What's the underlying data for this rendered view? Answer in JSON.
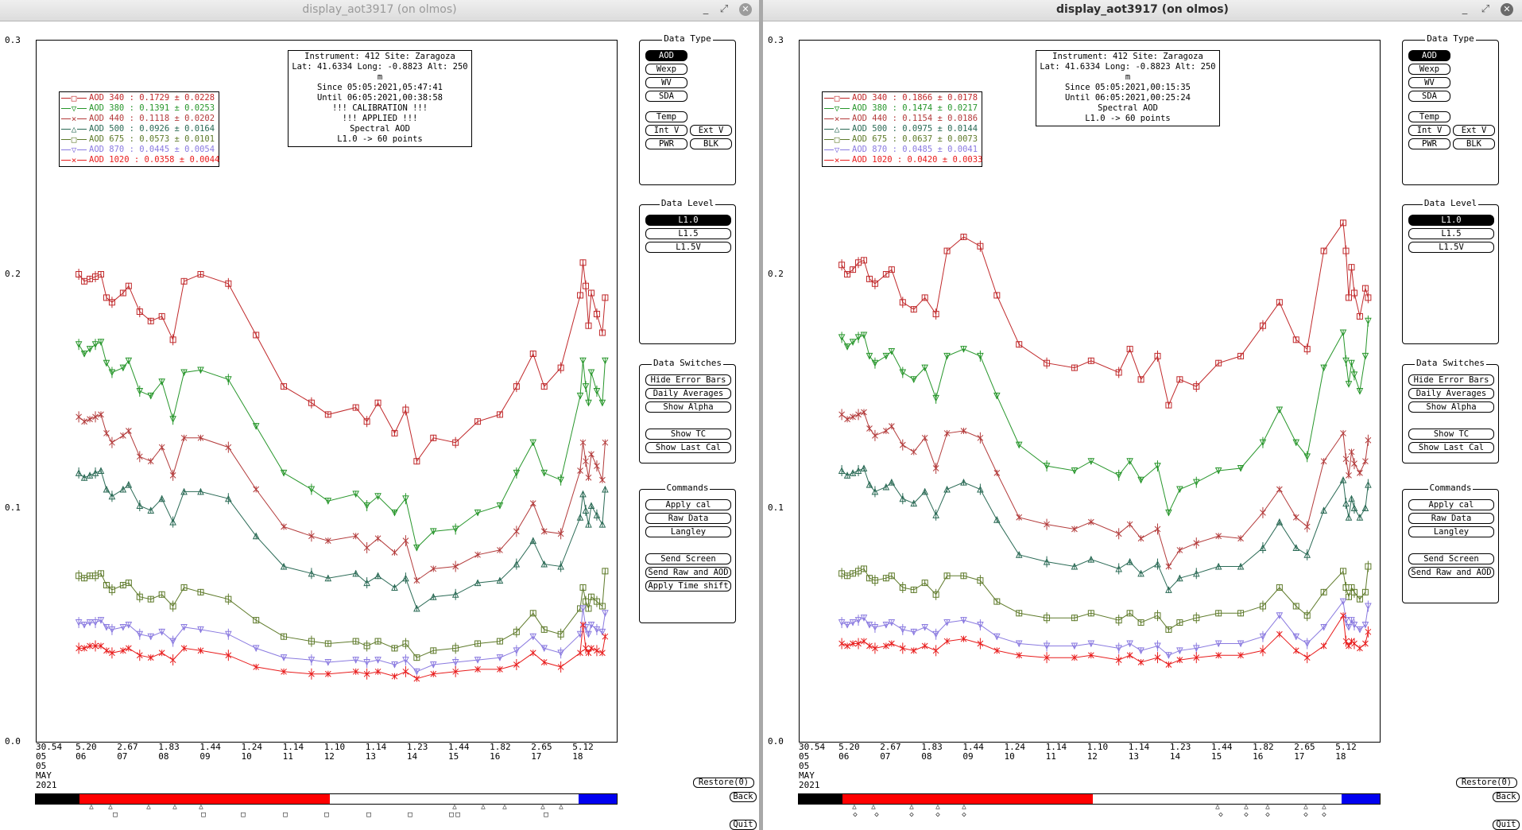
{
  "windows": [
    {
      "title": "display_aot3917 (on olmos)",
      "info": [
        "Instrument: 412 Site: Zaragoza",
        "Lat: 41.6334 Long: -0.8823 Alt: 250 m",
        "Since 05:05:2021,05:47:41",
        "Until 06:05:2021,00:38:58",
        "!!! CALIBRATION !!!",
        "!!!   APPLIED   !!!",
        "Spectral AOD",
        "L1.0 -> 60 points"
      ],
      "legend": [
        {
          "sym": "□",
          "label": "AOD 340",
          "value": ": 0.1729 ± 0.0228",
          "color": "#c0282a"
        },
        {
          "sym": "▽",
          "label": "AOD 380",
          "value": ": 0.1391 ± 0.0253",
          "color": "#27962b"
        },
        {
          "sym": "×",
          "label": "AOD 440",
          "value": ": 0.1118 ± 0.0202",
          "color": "#b33b3b"
        },
        {
          "sym": "△",
          "label": "AOD 500",
          "value": ": 0.0926 ± 0.0164",
          "color": "#2a6a55"
        },
        {
          "sym": "□",
          "label": "AOD 675",
          "value": ": 0.0573 ± 0.0101",
          "color": "#5e7a2a"
        },
        {
          "sym": "▽",
          "label": "AOD 870",
          "value": ": 0.0445 ± 0.0054",
          "color": "#8a7ae0"
        },
        {
          "sym": "×",
          "label": "AOD 1020",
          "value": ": 0.0358 ± 0.0044",
          "color": "#e81c1c"
        }
      ],
      "xticks": [
        "30.54\n05",
        "5.20\n06",
        "2.67\n07",
        "1.83\n08",
        "1.44\n09",
        "1.24\n10",
        "1.14\n11",
        "1.10\n12",
        "1.14\n13",
        "1.23\n14",
        "1.44\n15",
        "1.82\n16",
        "2.65\n17",
        "5.12\n18"
      ]
    },
    {
      "title": "display_aot3917 (on olmos)",
      "info": [
        "Instrument: 412 Site: Zaragoza",
        "Lat: 41.6334 Long: -0.8823 Alt: 250 m",
        "Since 05:05:2021,00:15:35",
        "Until 06:05:2021,00:25:24",
        "Spectral AOD",
        "L1.0 -> 60 points"
      ],
      "legend": [
        {
          "sym": "□",
          "label": "AOD 340",
          "value": ": 0.1866 ± 0.0178",
          "color": "#c0282a"
        },
        {
          "sym": "▽",
          "label": "AOD 380",
          "value": ": 0.1474 ± 0.0217",
          "color": "#27962b"
        },
        {
          "sym": "×",
          "label": "AOD 440",
          "value": ": 0.1154 ± 0.0186",
          "color": "#b33b3b"
        },
        {
          "sym": "△",
          "label": "AOD 500",
          "value": ": 0.0975 ± 0.0144",
          "color": "#2a6a55"
        },
        {
          "sym": "□",
          "label": "AOD 675",
          "value": ": 0.0637 ± 0.0073",
          "color": "#5e7a2a"
        },
        {
          "sym": "▽",
          "label": "AOD 870",
          "value": ": 0.0485 ± 0.0041",
          "color": "#8a7ae0"
        },
        {
          "sym": "×",
          "label": "AOD 1020",
          "value": ": 0.0420 ± 0.0033",
          "color": "#e81c1c"
        }
      ],
      "xticks": [
        "30.54\n05",
        "5.20\n06",
        "2.67\n07",
        "1.83\n08",
        "1.44\n09",
        "1.24\n10",
        "1.14\n11",
        "1.10\n12",
        "1.14\n13",
        "1.23\n14",
        "1.44\n15",
        "1.82\n16",
        "2.65\n17",
        "5.12\n18"
      ]
    }
  ],
  "yticks": [
    "0.3",
    "0.2",
    "0.1",
    "0.0"
  ],
  "xmonth": [
    "05",
    "MAY",
    "2021"
  ],
  "panels": {
    "data_type": {
      "title": "Data Type",
      "aod": "AOD",
      "wexp": "Wexp",
      "wv": "WV",
      "sda": "SDA",
      "temp": "Temp",
      "intv": "Int V",
      "extv": "Ext V",
      "pwr": "PWR",
      "blk": "BLK"
    },
    "data_level": {
      "title": "Data Level",
      "l10": "L1.0",
      "l15": "L1.5",
      "l15v": "L1.5V"
    },
    "data_switches": {
      "title": "Data Switches",
      "hide": "Hide Error Bars",
      "daily": "Daily Averages",
      "alpha": "Show Alpha",
      "tc": "Show TC",
      "lastcal": "Show Last Cal"
    },
    "commands": {
      "title": "Commands",
      "applycal": "Apply cal",
      "raw": "Raw Data",
      "langley": "Langley",
      "send": "Send Screen",
      "sendraw": "Send Raw and AOD",
      "timeshift": "Apply Time shift"
    }
  },
  "side_buttons": {
    "restore": "Restore(0)",
    "back": "Back",
    "quit": "Quit"
  },
  "window_buttons": {
    "minimize": "_",
    "maximize": "⤢",
    "close": "✕"
  },
  "chart_data": [
    {
      "type": "line",
      "ylim": [
        0,
        0.3
      ],
      "x_tick_labels": [
        "30.54\n05",
        "5.20\n06",
        "2.67\n07",
        "1.83\n08",
        "1.44\n09",
        "1.24\n10",
        "1.14\n11",
        "1.10\n12",
        "1.14\n13",
        "1.23\n14",
        "1.44\n15",
        "1.82\n16",
        "2.65\n17",
        "5.12\n18"
      ],
      "x": [
        0.05,
        0.06,
        0.07,
        0.08,
        0.09,
        0.1,
        0.11,
        0.13,
        0.14,
        0.16,
        0.18,
        0.2,
        0.22,
        0.24,
        0.27,
        0.32,
        0.37,
        0.42,
        0.47,
        0.5,
        0.55,
        0.57,
        0.59,
        0.62,
        0.64,
        0.66,
        0.69,
        0.73,
        0.77,
        0.81,
        0.84,
        0.87,
        0.89,
        0.92,
        0.955,
        0.96,
        0.965,
        0.97,
        0.975,
        0.985,
        0.995,
        1.0
      ],
      "series": [
        {
          "name": "AOD 340",
          "color": "#c0282a",
          "values": [
            0.2,
            0.197,
            0.198,
            0.199,
            0.2,
            0.19,
            0.188,
            0.192,
            0.195,
            0.184,
            0.18,
            0.182,
            0.172,
            0.197,
            0.2,
            0.196,
            0.174,
            0.152,
            0.145,
            0.14,
            0.143,
            0.137,
            0.145,
            0.132,
            0.142,
            0.12,
            0.13,
            0.128,
            0.137,
            0.14,
            0.152,
            0.166,
            0.152,
            0.16,
            0.191,
            0.205,
            0.195,
            0.178,
            0.192,
            0.183,
            0.175,
            0.19
          ]
        },
        {
          "name": "AOD 380",
          "color": "#27962b",
          "values": [
            0.17,
            0.166,
            0.168,
            0.17,
            0.171,
            0.162,
            0.158,
            0.16,
            0.163,
            0.15,
            0.148,
            0.154,
            0.138,
            0.158,
            0.159,
            0.155,
            0.135,
            0.115,
            0.108,
            0.103,
            0.106,
            0.101,
            0.105,
            0.098,
            0.104,
            0.083,
            0.09,
            0.091,
            0.098,
            0.101,
            0.115,
            0.128,
            0.115,
            0.112,
            0.148,
            0.163,
            0.152,
            0.145,
            0.158,
            0.15,
            0.145,
            0.163
          ]
        },
        {
          "name": "AOD 440",
          "color": "#b33b3b",
          "values": [
            0.139,
            0.137,
            0.138,
            0.139,
            0.14,
            0.132,
            0.128,
            0.131,
            0.133,
            0.122,
            0.12,
            0.126,
            0.114,
            0.13,
            0.13,
            0.126,
            0.108,
            0.092,
            0.088,
            0.086,
            0.088,
            0.083,
            0.087,
            0.081,
            0.086,
            0.069,
            0.074,
            0.075,
            0.08,
            0.082,
            0.09,
            0.102,
            0.09,
            0.089,
            0.116,
            0.128,
            0.12,
            0.113,
            0.123,
            0.118,
            0.112,
            0.128
          ]
        },
        {
          "name": "AOD 500",
          "color": "#2a6a55",
          "values": [
            0.115,
            0.113,
            0.114,
            0.115,
            0.116,
            0.108,
            0.105,
            0.108,
            0.11,
            0.101,
            0.099,
            0.104,
            0.094,
            0.107,
            0.107,
            0.104,
            0.088,
            0.075,
            0.072,
            0.07,
            0.072,
            0.068,
            0.071,
            0.066,
            0.07,
            0.057,
            0.062,
            0.063,
            0.068,
            0.069,
            0.076,
            0.086,
            0.076,
            0.075,
            0.096,
            0.106,
            0.099,
            0.093,
            0.101,
            0.097,
            0.093,
            0.108
          ]
        },
        {
          "name": "AOD 675",
          "color": "#5e7a2a",
          "values": [
            0.071,
            0.07,
            0.071,
            0.071,
            0.072,
            0.067,
            0.065,
            0.067,
            0.068,
            0.062,
            0.061,
            0.063,
            0.058,
            0.066,
            0.064,
            0.061,
            0.052,
            0.045,
            0.043,
            0.042,
            0.043,
            0.041,
            0.043,
            0.04,
            0.042,
            0.036,
            0.039,
            0.04,
            0.042,
            0.043,
            0.047,
            0.055,
            0.048,
            0.046,
            0.057,
            0.066,
            0.06,
            0.057,
            0.062,
            0.06,
            0.058,
            0.073
          ]
        },
        {
          "name": "AOD 870",
          "color": "#8a7ae0",
          "values": [
            0.051,
            0.05,
            0.051,
            0.051,
            0.052,
            0.049,
            0.048,
            0.049,
            0.05,
            0.046,
            0.045,
            0.047,
            0.043,
            0.049,
            0.048,
            0.046,
            0.04,
            0.036,
            0.035,
            0.034,
            0.035,
            0.034,
            0.035,
            0.033,
            0.035,
            0.03,
            0.033,
            0.034,
            0.035,
            0.036,
            0.039,
            0.045,
            0.04,
            0.038,
            0.046,
            0.057,
            0.049,
            0.046,
            0.05,
            0.048,
            0.047,
            0.055
          ]
        },
        {
          "name": "AOD 1020",
          "color": "#e81c1c",
          "values": [
            0.04,
            0.04,
            0.041,
            0.041,
            0.041,
            0.039,
            0.038,
            0.039,
            0.04,
            0.037,
            0.036,
            0.038,
            0.035,
            0.04,
            0.039,
            0.037,
            0.032,
            0.03,
            0.029,
            0.029,
            0.03,
            0.029,
            0.03,
            0.028,
            0.03,
            0.027,
            0.029,
            0.03,
            0.031,
            0.031,
            0.033,
            0.038,
            0.034,
            0.032,
            0.038,
            0.05,
            0.04,
            0.038,
            0.04,
            0.039,
            0.038,
            0.045
          ]
        }
      ]
    },
    {
      "type": "line",
      "ylim": [
        0,
        0.3
      ],
      "x_tick_labels": [
        "30.54\n05",
        "5.20\n06",
        "2.67\n07",
        "1.83\n08",
        "1.44\n09",
        "1.24\n10",
        "1.14\n11",
        "1.10\n12",
        "1.14\n13",
        "1.23\n14",
        "1.44\n15",
        "1.82\n16",
        "2.65\n17",
        "5.12\n18"
      ],
      "x": [
        0.05,
        0.06,
        0.07,
        0.08,
        0.09,
        0.1,
        0.11,
        0.13,
        0.14,
        0.16,
        0.18,
        0.2,
        0.22,
        0.24,
        0.27,
        0.3,
        0.33,
        0.37,
        0.42,
        0.47,
        0.5,
        0.55,
        0.57,
        0.59,
        0.62,
        0.64,
        0.66,
        0.69,
        0.73,
        0.77,
        0.81,
        0.84,
        0.87,
        0.89,
        0.92,
        0.955,
        0.96,
        0.965,
        0.97,
        0.975,
        0.985,
        0.995,
        1.0
      ],
      "series": [
        {
          "name": "AOD 340",
          "color": "#c0282a",
          "values": [
            0.204,
            0.2,
            0.202,
            0.205,
            0.206,
            0.198,
            0.196,
            0.2,
            0.202,
            0.188,
            0.185,
            0.19,
            0.183,
            0.21,
            0.216,
            0.212,
            0.191,
            0.17,
            0.162,
            0.16,
            0.163,
            0.158,
            0.168,
            0.155,
            0.165,
            0.144,
            0.155,
            0.152,
            0.162,
            0.165,
            0.178,
            0.188,
            0.172,
            0.168,
            0.21,
            0.222,
            0.21,
            0.19,
            0.203,
            0.192,
            0.182,
            0.194,
            0.19
          ]
        },
        {
          "name": "AOD 380",
          "color": "#27962b",
          "values": [
            0.173,
            0.169,
            0.171,
            0.173,
            0.174,
            0.165,
            0.162,
            0.165,
            0.167,
            0.158,
            0.155,
            0.16,
            0.147,
            0.165,
            0.168,
            0.165,
            0.148,
            0.127,
            0.118,
            0.116,
            0.12,
            0.114,
            0.12,
            0.112,
            0.118,
            0.098,
            0.108,
            0.111,
            0.116,
            0.117,
            0.128,
            0.142,
            0.128,
            0.122,
            0.16,
            0.175,
            0.163,
            0.153,
            0.162,
            0.157,
            0.15,
            0.165,
            0.18
          ]
        },
        {
          "name": "AOD 440",
          "color": "#b33b3b",
          "values": [
            0.14,
            0.138,
            0.139,
            0.14,
            0.141,
            0.134,
            0.131,
            0.133,
            0.135,
            0.127,
            0.124,
            0.13,
            0.117,
            0.132,
            0.133,
            0.13,
            0.115,
            0.096,
            0.093,
            0.091,
            0.094,
            0.089,
            0.093,
            0.087,
            0.091,
            0.075,
            0.082,
            0.085,
            0.088,
            0.087,
            0.098,
            0.108,
            0.096,
            0.092,
            0.12,
            0.132,
            0.121,
            0.114,
            0.124,
            0.119,
            0.115,
            0.12,
            0.129
          ]
        },
        {
          "name": "AOD 500",
          "color": "#2a6a55",
          "values": [
            0.116,
            0.114,
            0.115,
            0.116,
            0.117,
            0.11,
            0.107,
            0.109,
            0.111,
            0.104,
            0.102,
            0.107,
            0.097,
            0.108,
            0.111,
            0.108,
            0.095,
            0.08,
            0.077,
            0.075,
            0.078,
            0.074,
            0.077,
            0.072,
            0.076,
            0.065,
            0.07,
            0.072,
            0.075,
            0.075,
            0.083,
            0.094,
            0.083,
            0.08,
            0.099,
            0.112,
            0.102,
            0.096,
            0.104,
            0.1,
            0.096,
            0.1,
            0.11
          ]
        },
        {
          "name": "AOD 675",
          "color": "#5e7a2a",
          "values": [
            0.072,
            0.071,
            0.072,
            0.073,
            0.074,
            0.07,
            0.069,
            0.07,
            0.071,
            0.066,
            0.065,
            0.068,
            0.063,
            0.071,
            0.071,
            0.069,
            0.06,
            0.055,
            0.053,
            0.053,
            0.055,
            0.052,
            0.055,
            0.051,
            0.054,
            0.048,
            0.051,
            0.053,
            0.055,
            0.055,
            0.058,
            0.066,
            0.058,
            0.054,
            0.064,
            0.073,
            0.066,
            0.062,
            0.066,
            0.064,
            0.061,
            0.064,
            0.075
          ]
        },
        {
          "name": "AOD 870",
          "color": "#8a7ae0",
          "values": [
            0.051,
            0.05,
            0.051,
            0.052,
            0.053,
            0.05,
            0.049,
            0.05,
            0.051,
            0.048,
            0.047,
            0.049,
            0.046,
            0.051,
            0.052,
            0.05,
            0.045,
            0.042,
            0.041,
            0.041,
            0.042,
            0.04,
            0.042,
            0.039,
            0.041,
            0.037,
            0.039,
            0.04,
            0.042,
            0.042,
            0.045,
            0.054,
            0.045,
            0.042,
            0.049,
            0.06,
            0.052,
            0.049,
            0.052,
            0.05,
            0.048,
            0.05,
            0.058
          ]
        },
        {
          "name": "AOD 1020",
          "color": "#e81c1c",
          "values": [
            0.042,
            0.041,
            0.042,
            0.042,
            0.043,
            0.041,
            0.04,
            0.041,
            0.042,
            0.04,
            0.039,
            0.041,
            0.039,
            0.043,
            0.044,
            0.042,
            0.039,
            0.037,
            0.036,
            0.036,
            0.037,
            0.035,
            0.037,
            0.034,
            0.036,
            0.033,
            0.035,
            0.036,
            0.037,
            0.037,
            0.039,
            0.046,
            0.039,
            0.036,
            0.041,
            0.054,
            0.043,
            0.041,
            0.043,
            0.042,
            0.04,
            0.042,
            0.047
          ]
        }
      ]
    }
  ]
}
